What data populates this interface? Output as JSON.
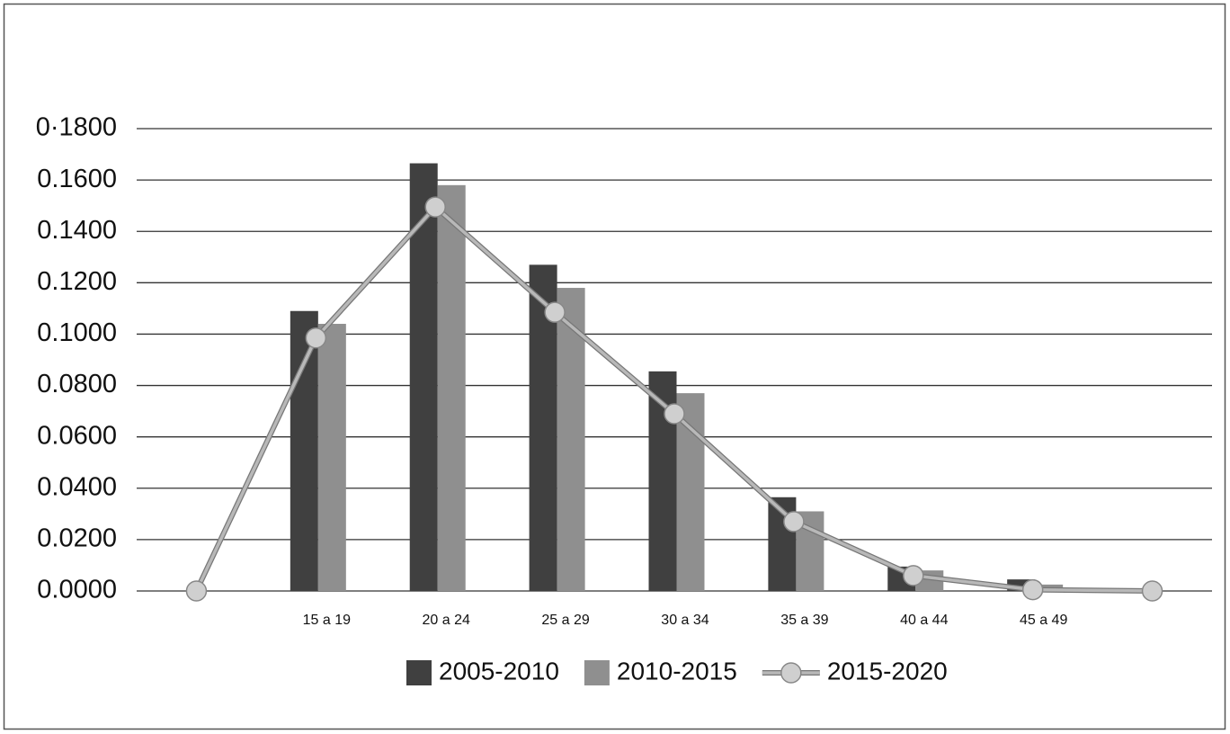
{
  "chart_data": {
    "type": "bar",
    "categories": [
      null,
      "15 a 19",
      "20 a 24",
      "25 a 29",
      "30 a 34",
      "35 a 39",
      "40 a 44",
      "45 a 49",
      null
    ],
    "series": [
      {
        "name": "2005-2010",
        "color": "#404040",
        "values": [
          null,
          0.109,
          0.1665,
          0.127,
          0.0855,
          0.0365,
          0.0095,
          0.0045,
          null
        ]
      },
      {
        "name": "2010-2015",
        "color": "#8f8f8f",
        "values": [
          null,
          0.104,
          0.158,
          0.118,
          0.077,
          0.031,
          0.008,
          0.0025,
          null
        ]
      },
      {
        "name": "2015-2020",
        "color": "#b8b8b8",
        "type": "line",
        "values": [
          0,
          0.0985,
          0.1495,
          0.1085,
          0.069,
          0.027,
          0.006,
          0.0005,
          0
        ]
      }
    ],
    "ylim": [
      0,
      0.18
    ],
    "yticks": [
      {
        "value": 0,
        "label": "0.0000"
      },
      {
        "value": 0.02,
        "label": "0.0200"
      },
      {
        "value": 0.04,
        "label": "0.0400"
      },
      {
        "value": 0.06,
        "label": "0.0600"
      },
      {
        "value": 0.08,
        "label": "0.0800"
      },
      {
        "value": 0.1,
        "label": "0.1000"
      },
      {
        "value": 0.12,
        "label": "0.1200"
      },
      {
        "value": 0.14,
        "label": "0.1400"
      },
      {
        "value": 0.16,
        "label": "0.1600"
      },
      {
        "value": 0.18,
        "label": "0·1800"
      }
    ],
    "grid": true,
    "legend": "bottom"
  }
}
